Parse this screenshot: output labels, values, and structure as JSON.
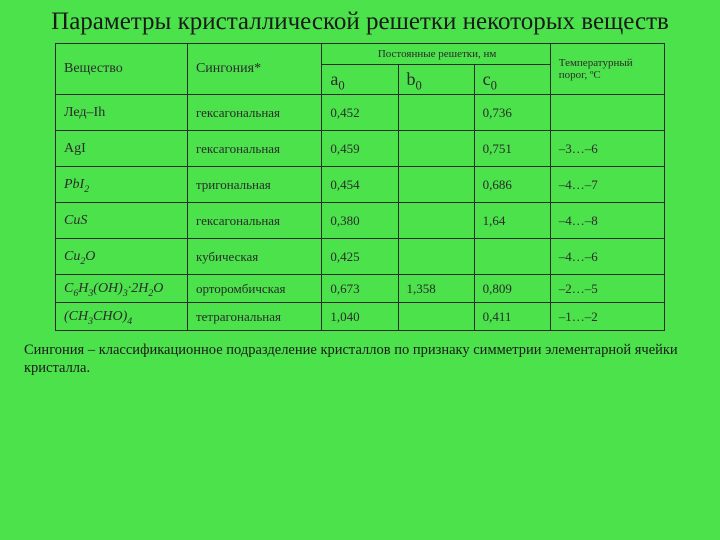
{
  "title": "Параметры кристаллической решетки некоторых веществ",
  "headers": {
    "substance": "Вещество",
    "syngony": "Сингония*",
    "lattice_group_a": "Постоянные решетки, нм",
    "lattice_group_b": "Температурный порог, ºС",
    "a0": "a",
    "b0": "b",
    "c0": "c",
    "sub0": "0"
  },
  "rows": [
    {
      "substance": "Лед–Ih",
      "syngony": "гексагональная",
      "a0": "0,452",
      "b0": "",
      "c0": "0,736",
      "temp": ""
    },
    {
      "substance": "AgI",
      "syngony": "гексагональная",
      "a0": "0,459",
      "b0": "",
      "c0": "0,751",
      "temp": "–3…–6"
    },
    {
      "substance_html": "PbI<sub>2</sub>",
      "italic": true,
      "syngony": "тригональная",
      "a0": "0,454",
      "b0": "",
      "c0": "0,686",
      "temp": "–4…–7"
    },
    {
      "substance_html": "CuS",
      "italic": true,
      "syngony": "гексагональная",
      "a0": "0,380",
      "b0": "",
      "c0": "1,64",
      "temp": "–4…–8"
    },
    {
      "substance_html": "Cu<sub>2</sub>O",
      "italic": true,
      "syngony": "кубическая",
      "a0": "0,425",
      "b0": "",
      "c0": "",
      "temp": "–4…–6"
    },
    {
      "substance_html": "C<sub>6</sub>H<sub>3</sub>(OH)<sub>3</sub>·2H<sub>2</sub>O",
      "italic": true,
      "syngony": "орторомбичская",
      "a0": "0,673",
      "b0": "1,358",
      "c0": "0,809",
      "temp": "–2…–5",
      "tight": true
    },
    {
      "substance_html": "(CH<sub>3</sub>CHO)<sub>4</sub>",
      "italic": true,
      "syngony": "тетрагональная",
      "a0": "1,040",
      "b0": "",
      "c0": "0,411",
      "temp": "–1…–2",
      "tight": true
    }
  ],
  "footnote": "Сингония – классификационное подразделение кристаллов по признаку симметрии элементарной ячейки кристалла.",
  "colors": {
    "background": "#4be24b",
    "border": "#2b2b2b",
    "text": "#1a1a1a"
  }
}
